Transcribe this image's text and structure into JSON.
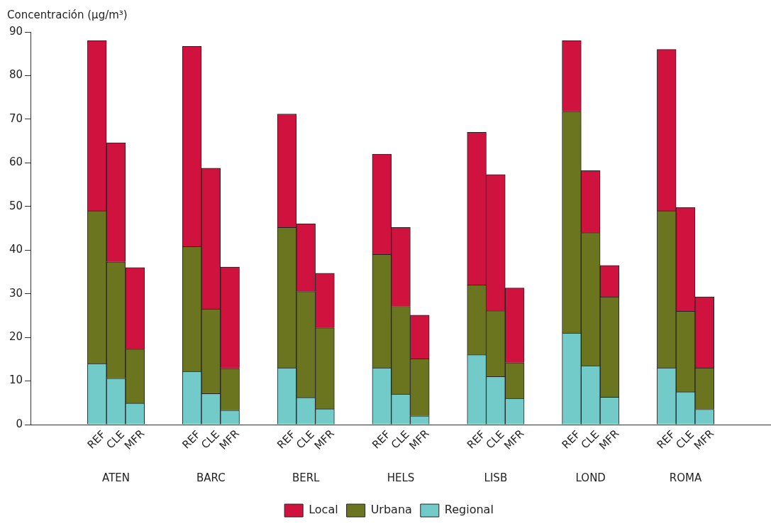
{
  "chart_data": {
    "type": "bar",
    "stacked": true,
    "ylabel": "Concentración (µg/m³)",
    "categories": [
      "REF",
      "CLE",
      "MFR",
      "REF",
      "CLE",
      "MFR",
      "REF",
      "CLE",
      "MFR",
      "REF",
      "CLE",
      "MFR",
      "REF",
      "CLE",
      "MFR",
      "REF",
      "CLE",
      "MFR",
      "REF",
      "CLE",
      "MFR"
    ],
    "annotations": [
      "ATEN",
      "BARC",
      "BERL",
      "HELS",
      "LISB",
      "LOND",
      "ROMA"
    ],
    "series": [
      {
        "name": "Regional",
        "color": "#72cbc8",
        "values": [
          14,
          10.6,
          4.9,
          12.2,
          7.1,
          3.3,
          13,
          6.2,
          3.6,
          13,
          7,
          2,
          16,
          11,
          6,
          21,
          13.5,
          6.3,
          13,
          7.5,
          3.5
        ]
      },
      {
        "name": "Urbana",
        "color": "#6b7520",
        "values": [
          35,
          26.7,
          12.4,
          28.6,
          19.4,
          9.6,
          32.2,
          24.3,
          18.6,
          26,
          20.1,
          13.1,
          16,
          15.1,
          8.2,
          50.8,
          30.5,
          23,
          36,
          18.5,
          9.5
        ]
      },
      {
        "name": "Local",
        "color": "#d0123f",
        "values": [
          39,
          27.3,
          18.7,
          45.9,
          32.3,
          23.2,
          26,
          15.5,
          12.5,
          23,
          18.1,
          10,
          35,
          31.2,
          17.1,
          16.2,
          14.2,
          7.2,
          37,
          23.8,
          16.3
        ]
      }
    ],
    "ylim": [
      0,
      90
    ],
    "yticks": [
      0,
      10,
      20,
      30,
      40,
      50,
      60,
      70,
      80,
      90
    ],
    "grid": false,
    "legend": "bottom"
  }
}
